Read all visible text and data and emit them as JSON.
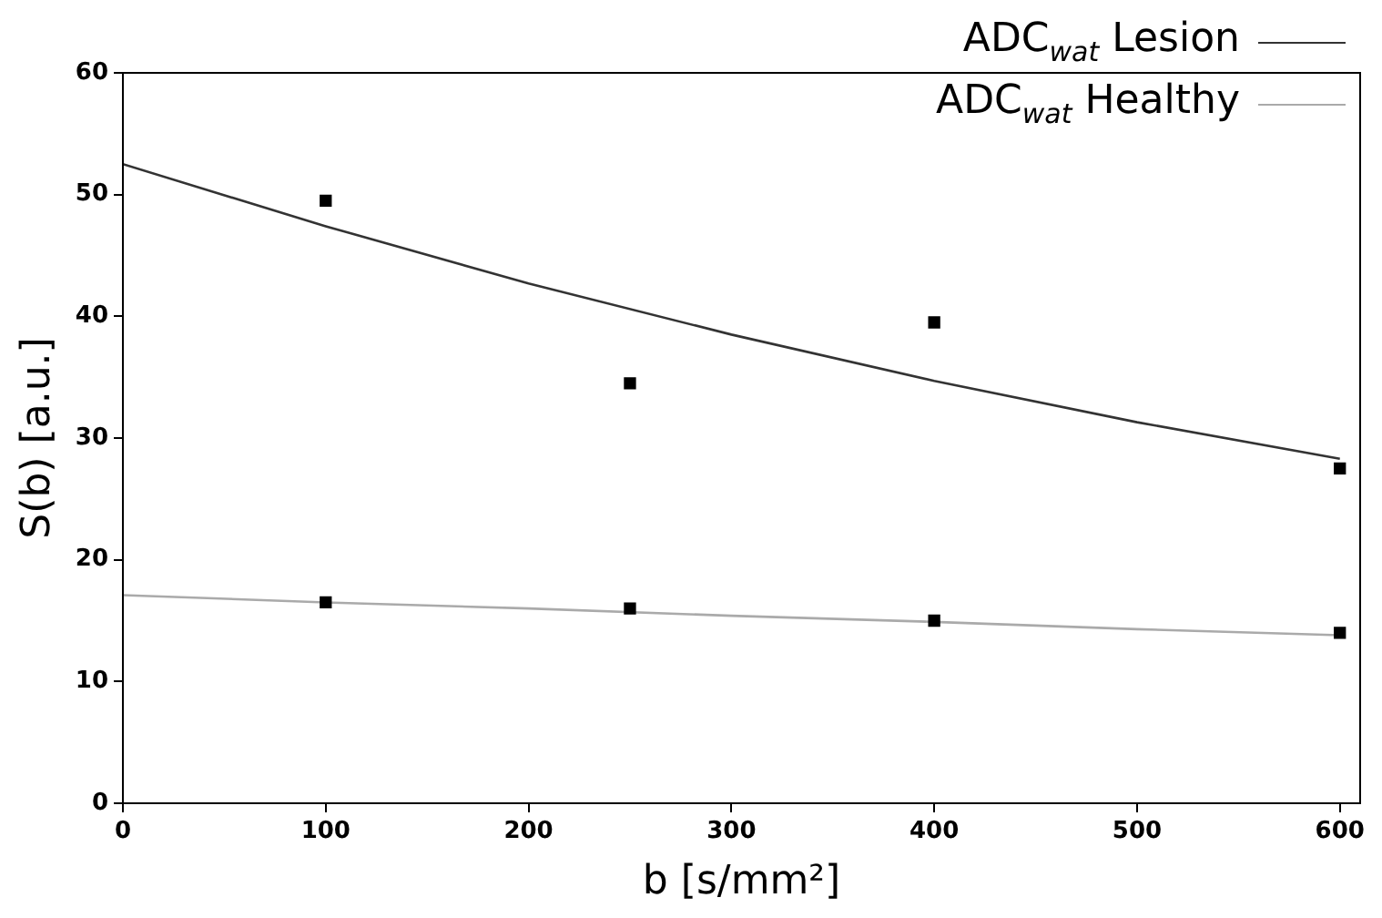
{
  "chart_data": {
    "type": "scatter",
    "xlabel": "b [s/mm²]",
    "ylabel": "S(b) [a.u.]",
    "xlim": [
      0,
      610
    ],
    "ylim": [
      0,
      60
    ],
    "xticks": [
      0,
      100,
      200,
      300,
      400,
      500,
      600
    ],
    "yticks": [
      0,
      10,
      20,
      30,
      40,
      50,
      60
    ],
    "grid": false,
    "legend": "top right",
    "marker": "square",
    "series": [
      {
        "color": "#000000",
        "x": [
          100,
          250,
          400,
          600
        ],
        "values": [
          49.5,
          34.5,
          39.5,
          27.5
        ]
      },
      {
        "color": "#000000",
        "x": [
          100,
          250,
          400,
          600
        ],
        "values": [
          16.5,
          16,
          15,
          14
        ]
      },
      {
        "type": "line",
        "name": "ADC$_{wat}$ Lesion",
        "color": "#333333",
        "marker": "none",
        "x": [
          0,
          100,
          200,
          300,
          400,
          500,
          600
        ],
        "values": [
          52.5,
          47.4,
          42.7,
          38.5,
          34.7,
          31.3,
          28.3
        ]
      },
      {
        "type": "line",
        "name": "ADC$_{wat}$ Healthy",
        "color": "#aaaaaa",
        "marker": "none",
        "x": [
          0,
          100,
          200,
          300,
          400,
          500,
          600
        ],
        "values": [
          17.1,
          16.5,
          16,
          15.4,
          14.9,
          14.3,
          13.8
        ]
      }
    ]
  }
}
